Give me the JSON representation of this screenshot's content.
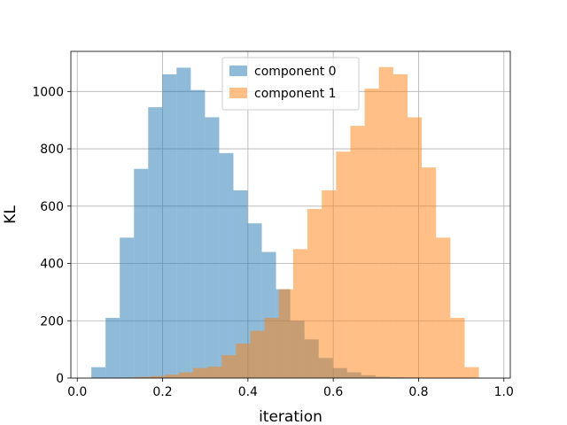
{
  "chart_data": {
    "type": "histogram",
    "title": "",
    "xlabel": "iteration",
    "ylabel": "KL",
    "xlim": [
      -0.015,
      1.015
    ],
    "ylim": [
      0,
      1140
    ],
    "xticks": [
      0.0,
      0.2,
      0.4,
      0.6,
      0.8,
      1.0
    ],
    "xtick_labels": [
      "0.0",
      "0.2",
      "0.4",
      "0.6",
      "0.8",
      "1.0"
    ],
    "yticks": [
      0,
      200,
      400,
      600,
      800,
      1000
    ],
    "ytick_labels": [
      "0",
      "200",
      "400",
      "600",
      "800",
      "1000"
    ],
    "grid": true,
    "legend_position": "top-center",
    "series": [
      {
        "name": "component 0",
        "color": "#1f77b4",
        "alpha": 0.5,
        "bin_edges": [
          0.033,
          0.0663,
          0.0996,
          0.1329,
          0.1662,
          0.1995,
          0.2328,
          0.2661,
          0.2994,
          0.3327,
          0.366,
          0.3993,
          0.4326,
          0.4659,
          0.4992,
          0.5325,
          0.5658,
          0.5991,
          0.6324,
          0.6657,
          0.699,
          0.7323,
          0.7656,
          0.7989,
          0.8322,
          0.8655,
          0.8988
        ],
        "counts": [
          38,
          210,
          490,
          730,
          945,
          1060,
          1083,
          1005,
          910,
          785,
          655,
          540,
          440,
          310,
          200,
          135,
          70,
          35,
          20,
          10,
          5,
          3,
          2,
          1,
          1,
          0
        ]
      },
      {
        "name": "component 1",
        "color": "#ff7f0e",
        "alpha": 0.5,
        "bin_edges": [
          0.104,
          0.1375,
          0.171,
          0.2045,
          0.238,
          0.2715,
          0.305,
          0.3385,
          0.372,
          0.4055,
          0.439,
          0.4725,
          0.506,
          0.5395,
          0.573,
          0.6065,
          0.64,
          0.6735,
          0.707,
          0.7405,
          0.774,
          0.8075,
          0.841,
          0.8745,
          0.908,
          0.9415,
          0.975
        ],
        "counts": [
          2,
          4,
          7,
          12,
          20,
          35,
          40,
          80,
          120,
          165,
          210,
          310,
          450,
          590,
          655,
          790,
          880,
          1010,
          1085,
          1060,
          910,
          735,
          490,
          210,
          38,
          0
        ]
      }
    ]
  }
}
